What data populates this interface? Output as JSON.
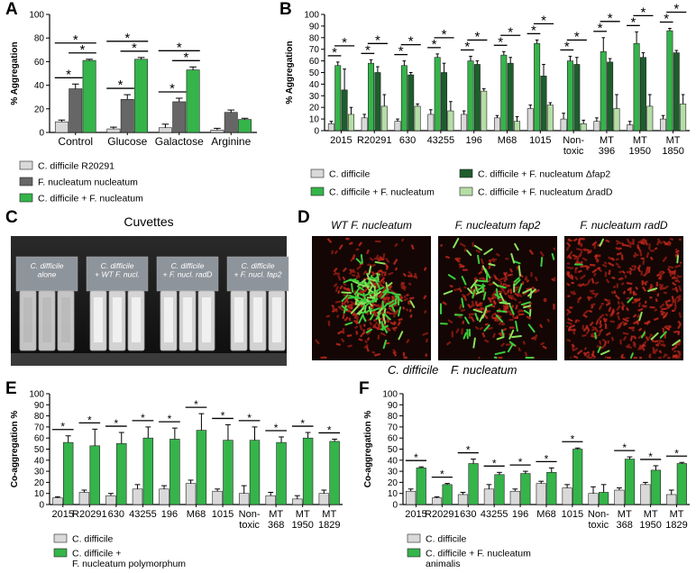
{
  "chart_data": [
    {
      "panel": "A",
      "type": "bar",
      "ylabel": "% Aggregation",
      "categories": [
        "Control",
        "Glucose",
        "Galactose",
        "Arginine"
      ],
      "ylim": [
        0,
        100
      ],
      "yticks": [
        0,
        20,
        40,
        60,
        80,
        100
      ],
      "series": [
        {
          "name": "C. difficile R20291",
          "color": "#d9d9d9",
          "values": [
            9,
            3,
            4,
            2
          ],
          "errors": [
            1.5,
            1.5,
            3,
            1.5
          ]
        },
        {
          "name": "F. nucleatum nucleatum",
          "color": "#666666",
          "values": [
            37,
            28,
            26,
            17
          ],
          "errors": [
            4,
            4,
            3,
            2
          ]
        },
        {
          "name": "C. difficile + F. nucleatum",
          "color": "#35b44a",
          "values": [
            61,
            62,
            53,
            11
          ],
          "errors": [
            1,
            1.5,
            2.5,
            1
          ]
        }
      ],
      "significance": [
        {
          "label": "*",
          "category": 0,
          "between": [
            0,
            1
          ]
        },
        {
          "label": "*",
          "category": 0,
          "between": [
            1,
            2
          ]
        },
        {
          "label": "*",
          "category": 0,
          "between": [
            0,
            2
          ]
        },
        {
          "label": "*",
          "category": 1,
          "between": [
            0,
            1
          ]
        },
        {
          "label": "*",
          "category": 1,
          "between": [
            1,
            2
          ]
        },
        {
          "label": "*",
          "category": 1,
          "between": [
            0,
            2
          ]
        },
        {
          "label": "*",
          "category": 2,
          "between": [
            0,
            1
          ]
        },
        {
          "label": "*",
          "category": 2,
          "between": [
            1,
            2
          ]
        },
        {
          "label": "*",
          "category": 2,
          "between": [
            0,
            2
          ]
        }
      ]
    },
    {
      "panel": "B",
      "type": "bar",
      "ylabel": "% Aggregation",
      "categories": [
        "2015",
        "R20291",
        "630",
        "43255",
        "196",
        "M68",
        "1015",
        "Non-\ntoxic",
        "MT\n396",
        "MT\n1950",
        "MT\n1850"
      ],
      "ylim": [
        0,
        100
      ],
      "yticks": [
        0,
        10,
        20,
        30,
        40,
        50,
        60,
        70,
        80,
        90,
        100
      ],
      "series": [
        {
          "name": "C. difficile",
          "color": "#d9d9d9",
          "values": [
            6,
            11,
            8,
            14,
            14,
            11,
            19,
            10,
            8,
            5,
            10
          ],
          "errors": [
            2,
            3,
            2,
            4,
            3,
            2,
            3,
            5,
            3,
            3,
            3
          ]
        },
        {
          "name": "C. difficile + F. nucleatum",
          "color": "#35b44a",
          "values": [
            56,
            58,
            56,
            63,
            60,
            65,
            75,
            60,
            68,
            75,
            86
          ],
          "errors": [
            3,
            3,
            4,
            3,
            4,
            3,
            3,
            4,
            12,
            10,
            2
          ]
        },
        {
          "name": "C. difficile + F. nucleatum Δfap2",
          "color": "#1d5e2c",
          "values": [
            35,
            50,
            48,
            50,
            57,
            58,
            47,
            57,
            59,
            63,
            67
          ],
          "errors": [
            18,
            5,
            2,
            8,
            3,
            5,
            10,
            6,
            3,
            4,
            2
          ]
        },
        {
          "name": "C. difficile + F. nucleatum ΔradD",
          "color": "#b5dea5",
          "values": [
            14,
            21,
            21,
            17,
            34,
            8,
            22,
            6,
            19,
            21,
            23
          ],
          "errors": [
            6,
            10,
            2,
            8,
            2,
            4,
            2,
            3,
            12,
            10,
            8
          ]
        }
      ],
      "significance": [
        {
          "label": "*",
          "category": 0,
          "between": [
            0,
            1
          ]
        },
        {
          "label": "*",
          "category": 0,
          "between": [
            1,
            3
          ]
        },
        {
          "label": "*",
          "category": 1,
          "between": [
            0,
            1
          ]
        },
        {
          "label": "*",
          "category": 1,
          "between": [
            1,
            3
          ]
        },
        {
          "label": "*",
          "category": 2,
          "between": [
            0,
            1
          ]
        },
        {
          "label": "*",
          "category": 2,
          "between": [
            1,
            3
          ]
        },
        {
          "label": "*",
          "category": 3,
          "between": [
            0,
            1
          ]
        },
        {
          "label": "*",
          "category": 3,
          "between": [
            1,
            3
          ]
        },
        {
          "label": "*",
          "category": 4,
          "between": [
            0,
            1
          ]
        },
        {
          "label": "*",
          "category": 4,
          "between": [
            1,
            3
          ]
        },
        {
          "label": "*",
          "category": 5,
          "between": [
            0,
            1
          ]
        },
        {
          "label": "*",
          "category": 5,
          "between": [
            1,
            3
          ]
        },
        {
          "label": "*",
          "category": 6,
          "between": [
            0,
            1
          ]
        },
        {
          "label": "*",
          "category": 6,
          "between": [
            1,
            3
          ]
        },
        {
          "label": "*",
          "category": 7,
          "between": [
            0,
            1
          ]
        },
        {
          "label": "*",
          "category": 7,
          "between": [
            1,
            3
          ]
        },
        {
          "label": "*",
          "category": 8,
          "between": [
            0,
            1
          ]
        },
        {
          "label": "*",
          "category": 8,
          "between": [
            1,
            3
          ]
        },
        {
          "label": "*",
          "category": 9,
          "between": [
            0,
            1
          ]
        },
        {
          "label": "*",
          "category": 9,
          "between": [
            1,
            3
          ]
        },
        {
          "label": "*",
          "category": 10,
          "between": [
            0,
            1
          ]
        },
        {
          "label": "*",
          "category": 10,
          "between": [
            1,
            3
          ]
        }
      ]
    },
    {
      "panel": "E",
      "type": "bar",
      "ylabel": "Co-aggregation %",
      "categories": [
        "2015",
        "R20291",
        "630",
        "43255",
        "196",
        "M68",
        "1015",
        "Non-\ntoxic",
        "MT\n368",
        "MT\n1950",
        "MT\n1829"
      ],
      "ylim": [
        0,
        100
      ],
      "yticks": [
        0,
        10,
        20,
        30,
        40,
        50,
        60,
        70,
        80,
        90,
        100
      ],
      "series": [
        {
          "name": "C. difficile",
          "color": "#d9d9d9",
          "values": [
            6,
            11,
            8,
            14,
            14,
            19,
            12,
            10,
            8,
            5,
            10
          ],
          "errors": [
            1,
            2,
            2,
            4,
            3,
            3,
            2,
            7,
            3,
            3,
            3
          ]
        },
        {
          "name": "C. difficile +\nF. nucleatum polymorphum",
          "color": "#35b44a",
          "values": [
            56,
            53,
            55,
            60,
            59,
            67,
            58,
            58,
            56,
            60,
            57
          ],
          "errors": [
            6,
            15,
            10,
            10,
            10,
            15,
            14,
            12,
            5,
            5,
            2
          ]
        }
      ],
      "significance": [
        {
          "label": "*",
          "category": 0,
          "between": [
            0,
            1
          ]
        },
        {
          "label": "*",
          "category": 1,
          "between": [
            0,
            1
          ]
        },
        {
          "label": "*",
          "category": 2,
          "between": [
            0,
            1
          ]
        },
        {
          "label": "*",
          "category": 3,
          "between": [
            0,
            1
          ]
        },
        {
          "label": "*",
          "category": 4,
          "between": [
            0,
            1
          ]
        },
        {
          "label": "*",
          "category": 5,
          "between": [
            0,
            1
          ]
        },
        {
          "label": "*",
          "category": 6,
          "between": [
            0,
            1
          ]
        },
        {
          "label": "*",
          "category": 7,
          "between": [
            0,
            1
          ]
        },
        {
          "label": "*",
          "category": 8,
          "between": [
            0,
            1
          ]
        },
        {
          "label": "*",
          "category": 9,
          "between": [
            0,
            1
          ]
        },
        {
          "label": "*",
          "category": 10,
          "between": [
            0,
            1
          ]
        }
      ]
    },
    {
      "panel": "F",
      "type": "bar",
      "ylabel": "Co-aggregation %",
      "categories": [
        "2015",
        "R20291",
        "630",
        "43255",
        "196",
        "M68",
        "1015",
        "Non-\ntoxic",
        "MT\n368",
        "MT\n1950",
        "MT\n1829"
      ],
      "ylim": [
        0,
        100
      ],
      "yticks": [
        0,
        10,
        20,
        30,
        40,
        50,
        60,
        70,
        80,
        90,
        100
      ],
      "series": [
        {
          "name": "C. difficile",
          "color": "#d9d9d9",
          "values": [
            12,
            6,
            9,
            14,
            12,
            19,
            15,
            10,
            13,
            18,
            9
          ],
          "errors": [
            2,
            1,
            2,
            4,
            2,
            2,
            3,
            6,
            2,
            2,
            4
          ]
        },
        {
          "name": "C. difficile + F. nucleatum\nanimalis",
          "color": "#35b44a",
          "values": [
            33,
            18,
            37,
            27,
            28,
            29,
            50,
            11,
            41,
            31,
            37
          ],
          "errors": [
            1,
            1,
            4,
            2,
            2,
            4,
            1,
            7,
            2,
            4,
            1
          ]
        }
      ],
      "significance": [
        {
          "label": "*",
          "category": 0,
          "between": [
            0,
            1
          ]
        },
        {
          "label": "*",
          "category": 1,
          "between": [
            0,
            1
          ]
        },
        {
          "label": "*",
          "category": 2,
          "between": [
            0,
            1
          ]
        },
        {
          "label": "*",
          "category": 3,
          "between": [
            0,
            1
          ]
        },
        {
          "label": "*",
          "category": 4,
          "between": [
            0,
            1
          ]
        },
        {
          "label": "*",
          "category": 5,
          "between": [
            0,
            1
          ]
        },
        {
          "label": "*",
          "category": 6,
          "between": [
            0,
            1
          ]
        },
        {
          "label": "*",
          "category": 8,
          "between": [
            0,
            1
          ]
        },
        {
          "label": "*",
          "category": 9,
          "between": [
            0,
            1
          ]
        },
        {
          "label": "*",
          "category": 10,
          "between": [
            0,
            1
          ]
        }
      ]
    }
  ],
  "cuvettes": {
    "panel": "C",
    "title": "Cuvettes",
    "labels": [
      "C. difficile\nalone",
      "C. difficile\n+ WT F. nucl.",
      "C. difficile\n+ F. nucl. radD",
      "C. difficile\n+ F. nucl. fap2"
    ]
  },
  "microscopy": {
    "panel": "D",
    "titles": [
      "WT F. nucleatum",
      "F. nucleatum fap2",
      "F. nucleatum radD"
    ],
    "legend": [
      {
        "label": "C. difficile",
        "color": "#2aa845"
      },
      {
        "label": "F. nucleatum",
        "color": "#d42a1e"
      }
    ]
  }
}
